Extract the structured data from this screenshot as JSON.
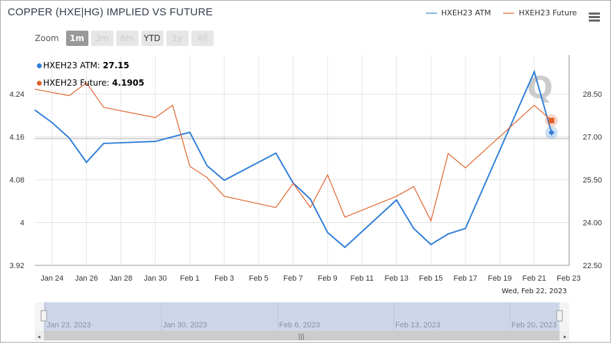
{
  "title": "COPPER (HXE|HG) IMPLIED VS FUTURE",
  "zoom": {
    "label": "Zoom",
    "buttons": [
      "1m",
      "3m",
      "6m",
      "YTD",
      "1y",
      "All"
    ],
    "active": "1m"
  },
  "tooltip": {
    "atm_label": "HXEH23 ATM:",
    "atm_value": "27.15",
    "future_label": "HXEH23 Future:",
    "future_value": "4.1905",
    "date": "Wed, Feb 22, 2023"
  },
  "navigator": {
    "labels": [
      "Jan 23, 2023",
      "Jan 30, 2023",
      "Feb 6, 2023",
      "Feb 13, 2023",
      "Feb 20, 2023"
    ]
  },
  "chart_data": {
    "type": "line",
    "title": "COPPER (HXE|HG) IMPLIED VS FUTURE",
    "legend": "top-right",
    "grid": true,
    "x_ticks": [
      "Jan 24",
      "Jan 26",
      "Jan 28",
      "Jan 30",
      "Feb 1",
      "Feb 3",
      "Feb 5",
      "Feb 7",
      "Feb 9",
      "Feb 11",
      "Feb 13",
      "Feb 15",
      "Feb 17",
      "Feb 19",
      "Feb 21",
      "Feb 23"
    ],
    "left_axis": {
      "ticks": [
        "3.92",
        "4",
        "4.08",
        "4.16",
        "4.24"
      ],
      "range": [
        3.92,
        4.24
      ]
    },
    "right_axis": {
      "ticks": [
        "22.50",
        "24.00",
        "25.50",
        "27.00",
        "28.50"
      ],
      "range": [
        22.5,
        28.5
      ]
    },
    "x": [
      "2023-01-23",
      "2023-01-24",
      "2023-01-25",
      "2023-01-26",
      "2023-01-27",
      "2023-01-30",
      "2023-01-31",
      "2023-02-01",
      "2023-02-02",
      "2023-02-03",
      "2023-02-06",
      "2023-02-07",
      "2023-02-08",
      "2023-02-09",
      "2023-02-10",
      "2023-02-13",
      "2023-02-14",
      "2023-02-15",
      "2023-02-16",
      "2023-02-17",
      "2023-02-21",
      "2023-02-22"
    ],
    "series": [
      {
        "name": "HXEH23 ATM",
        "axis": "right",
        "color": "#2f7ed8",
        "values": [
          27.94,
          27.5,
          26.96,
          26.11,
          26.77,
          26.84,
          27.0,
          27.16,
          25.99,
          25.48,
          26.43,
          25.38,
          24.82,
          23.65,
          23.13,
          24.79,
          23.79,
          23.23,
          23.6,
          23.79,
          29.28,
          27.15
        ]
      },
      {
        "name": "HXEH23 Future",
        "axis": "left",
        "color": "#e0622a",
        "values": [
          4.249,
          4.243,
          4.237,
          4.261,
          4.215,
          4.196,
          4.219,
          4.105,
          4.084,
          4.049,
          4.028,
          4.073,
          4.028,
          4.089,
          4.01,
          4.049,
          4.067,
          4.003,
          4.129,
          4.102,
          4.219,
          4.1905
        ]
      }
    ]
  }
}
